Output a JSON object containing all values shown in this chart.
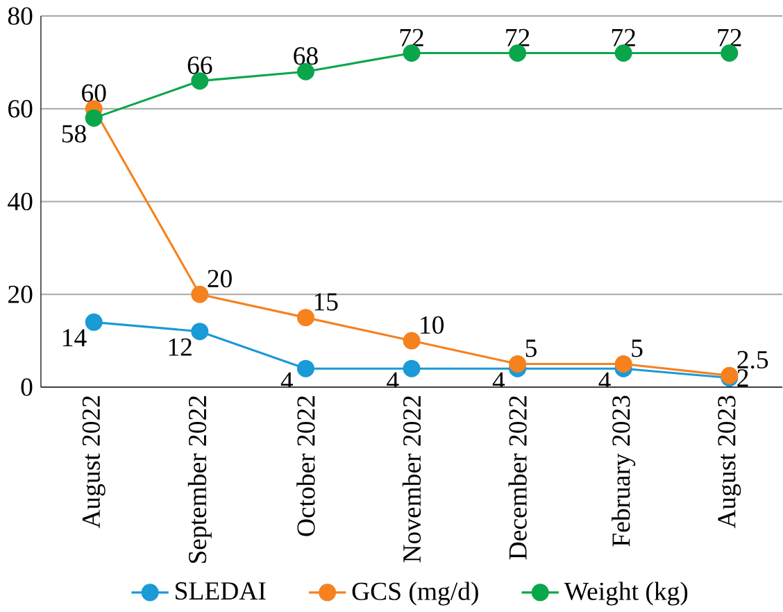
{
  "chart_data": {
    "type": "line",
    "categories": [
      "August 2022",
      "September 2022",
      "October 2022",
      "November 2022",
      "December 2022",
      "February 2023",
      "August 2023"
    ],
    "series": [
      {
        "name": "SLEDAI",
        "color": "#1a9ad6",
        "values": [
          14,
          12,
          4,
          4,
          4,
          4,
          2
        ]
      },
      {
        "name": "GCS (mg/d)",
        "color": "#f5821f",
        "values": [
          60,
          20,
          15,
          10,
          5,
          5,
          2.5
        ]
      },
      {
        "name": "Weight (kg)",
        "color": "#0aa64b",
        "values": [
          58,
          66,
          68,
          72,
          72,
          72,
          72
        ]
      }
    ],
    "ylim": [
      0,
      80
    ],
    "yticks": [
      0,
      20,
      40,
      60,
      80
    ],
    "grid": "y",
    "legend": "bottom",
    "marker": "circle",
    "line_style": "solid",
    "data_labels": true
  }
}
